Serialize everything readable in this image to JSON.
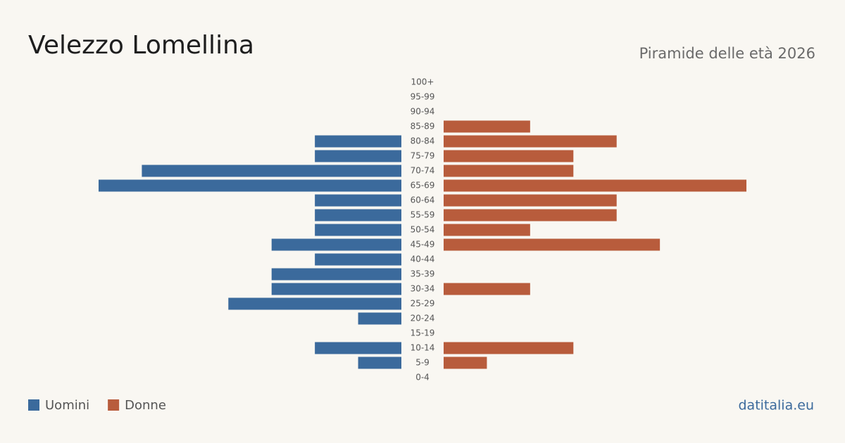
{
  "chart_data": {
    "type": "pyramid",
    "title": "Velezzo Lomellina",
    "subtitle": "Piramide delle età 2026",
    "categories": [
      "100+",
      "95-99",
      "90-94",
      "85-89",
      "80-84",
      "75-79",
      "70-74",
      "65-69",
      "60-64",
      "55-59",
      "50-54",
      "45-49",
      "40-44",
      "35-39",
      "30-34",
      "25-29",
      "20-24",
      "15-19",
      "10-14",
      "5-9",
      "0-4"
    ],
    "series": [
      {
        "name": "Uomini",
        "color": "#3b6a9c",
        "values": [
          0,
          0,
          0,
          0,
          2,
          2,
          6,
          7,
          2,
          2,
          2,
          3,
          2,
          3,
          3,
          4,
          1,
          0,
          2,
          1,
          0
        ]
      },
      {
        "name": "Donne",
        "color": "#b85c3c",
        "values": [
          0,
          0,
          0,
          2,
          4,
          3,
          3,
          7,
          4,
          4,
          2,
          5,
          0,
          0,
          2,
          0,
          0,
          0,
          3,
          1,
          0
        ]
      }
    ],
    "source": "datitalia.eu"
  }
}
